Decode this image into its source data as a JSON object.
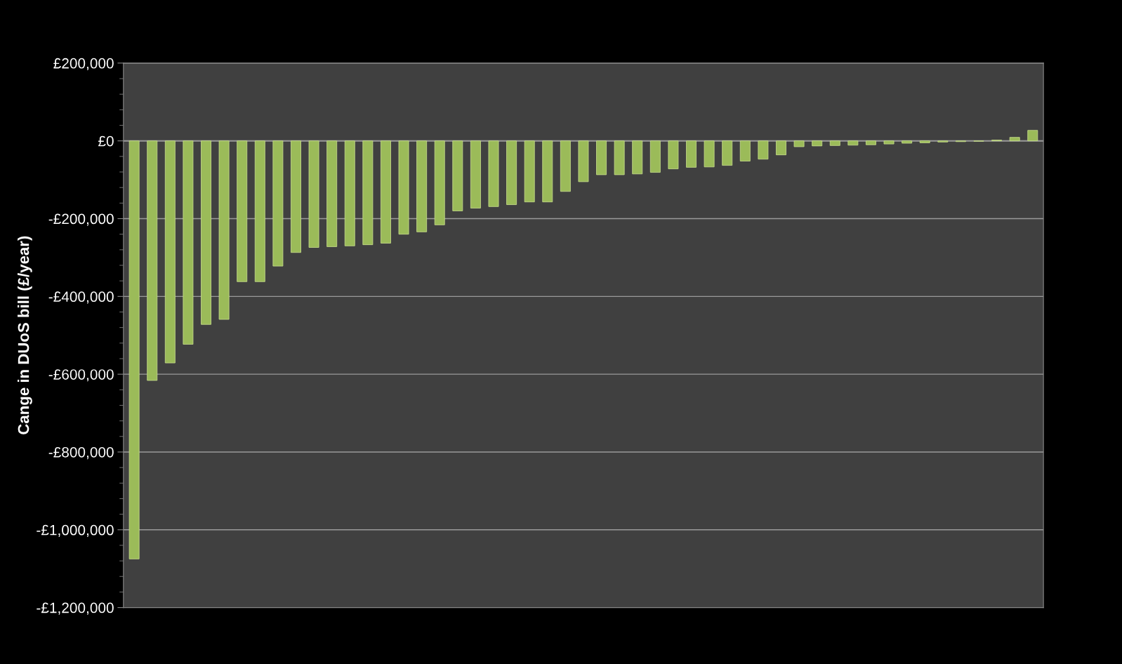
{
  "chart_data": {
    "type": "bar",
    "ylabel": "Cange in DUoS bill (£/year)",
    "categories": [
      null,
      null,
      null,
      null,
      null,
      null,
      null,
      null,
      null,
      null,
      null,
      null,
      null,
      null,
      null,
      null,
      null,
      null,
      null,
      null,
      null,
      null,
      null,
      null,
      null,
      null,
      null,
      null,
      null,
      null,
      null,
      null,
      null,
      null,
      null,
      null,
      null,
      null,
      null,
      null,
      null,
      null,
      null,
      null,
      null,
      null,
      null,
      null,
      null,
      null,
      null
    ],
    "values": [
      -1075000,
      -616000,
      -571000,
      -523000,
      -472000,
      -459000,
      -362000,
      -362000,
      -322000,
      -287000,
      -274000,
      -272000,
      -270000,
      -267000,
      -263000,
      -240000,
      -234000,
      -216000,
      -180000,
      -173000,
      -169000,
      -164000,
      -157000,
      -157000,
      -130000,
      -105000,
      -87000,
      -87000,
      -85000,
      -81000,
      -72000,
      -68000,
      -67000,
      -63000,
      -52000,
      -47000,
      -36000,
      -15000,
      -13000,
      -12000,
      -11000,
      -10000,
      -8000,
      -6000,
      -5000,
      -3000,
      -2000,
      -1000,
      2000,
      9000,
      27000
    ],
    "color": "#9bbb59",
    "ylim": [
      -1200000,
      200000
    ],
    "yticks": [
      {
        "value": 200000,
        "label": "£200,000"
      },
      {
        "value": 160000,
        "label": null
      },
      {
        "value": 120000,
        "label": null
      },
      {
        "value": 80000,
        "label": null
      },
      {
        "value": 40000,
        "label": null
      },
      {
        "value": 0,
        "label": "£0"
      },
      {
        "value": -40000,
        "label": null
      },
      {
        "value": -80000,
        "label": null
      },
      {
        "value": -120000,
        "label": null
      },
      {
        "value": -160000,
        "label": null
      },
      {
        "value": -200000,
        "label": "-£200,000"
      },
      {
        "value": -240000,
        "label": null
      },
      {
        "value": -280000,
        "label": null
      },
      {
        "value": -320000,
        "label": null
      },
      {
        "value": -360000,
        "label": null
      },
      {
        "value": -400000,
        "label": "-£400,000"
      },
      {
        "value": -440000,
        "label": null
      },
      {
        "value": -480000,
        "label": null
      },
      {
        "value": -520000,
        "label": null
      },
      {
        "value": -560000,
        "label": null
      },
      {
        "value": -600000,
        "label": "-£600,000"
      },
      {
        "value": -640000,
        "label": null
      },
      {
        "value": -680000,
        "label": null
      },
      {
        "value": -720000,
        "label": null
      },
      {
        "value": -760000,
        "label": null
      },
      {
        "value": -800000,
        "label": "-£800,000"
      },
      {
        "value": -840000,
        "label": null
      },
      {
        "value": -880000,
        "label": null
      },
      {
        "value": -920000,
        "label": null
      },
      {
        "value": -960000,
        "label": null
      },
      {
        "value": -1000000,
        "label": "-£1,000,000"
      },
      {
        "value": -1040000,
        "label": null
      },
      {
        "value": -1080000,
        "label": null
      },
      {
        "value": -1120000,
        "label": null
      },
      {
        "value": -1160000,
        "label": null
      },
      {
        "value": -1200000,
        "label": "-£1,200,000"
      }
    ],
    "grid": "y",
    "tick_labels": "y"
  }
}
